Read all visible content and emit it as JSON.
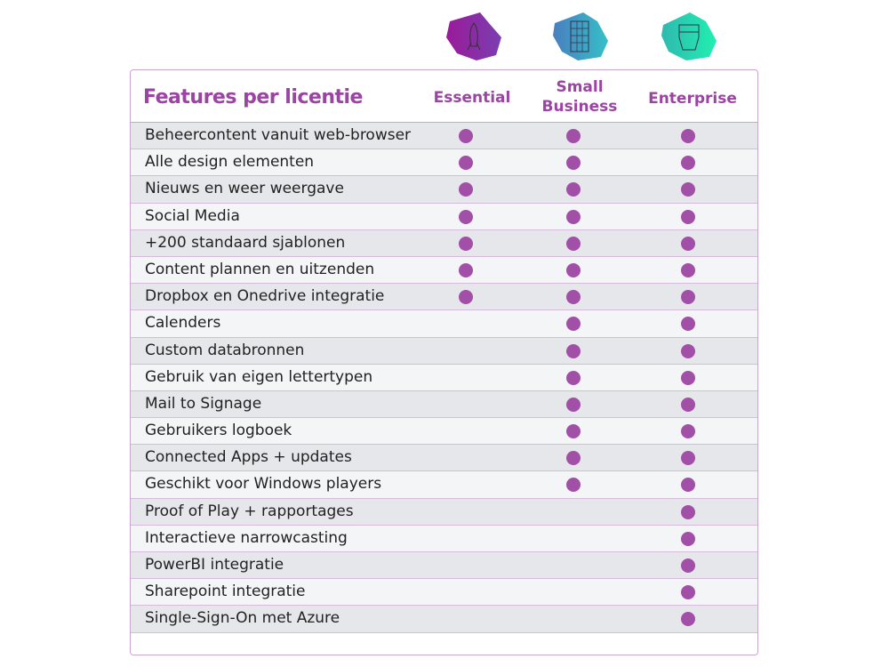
{
  "header": {
    "title": "Features per licentie",
    "columns": [
      "Essential",
      "Small Business",
      "Enterprise"
    ],
    "column_lines": [
      [
        "Essential"
      ],
      [
        "Small",
        "Business"
      ],
      [
        "Enterprise"
      ]
    ]
  },
  "icons": [
    {
      "name": "rocket-icon",
      "color": "#8a2a9a"
    },
    {
      "name": "building-icon",
      "color": "#3f8fc0"
    },
    {
      "name": "ship-icon",
      "color": "#22d8b0"
    }
  ],
  "dot_color": "#a24fa8",
  "rows": [
    {
      "label": "Beheercontent vanuit web-browser",
      "avail": [
        true,
        true,
        true
      ]
    },
    {
      "label": "Alle design elementen",
      "avail": [
        true,
        true,
        true
      ]
    },
    {
      "label": "Nieuws en weer weergave",
      "avail": [
        true,
        true,
        true
      ]
    },
    {
      "label": "Social Media",
      "avail": [
        true,
        true,
        true
      ]
    },
    {
      "label": "+200 standaard sjablonen",
      "avail": [
        true,
        true,
        true
      ]
    },
    {
      "label": "Content plannen en uitzenden",
      "avail": [
        true,
        true,
        true
      ]
    },
    {
      "label": "Dropbox en Onedrive integratie",
      "avail": [
        true,
        true,
        true
      ]
    },
    {
      "label": "Calenders",
      "avail": [
        false,
        true,
        true
      ]
    },
    {
      "label": "Custom databronnen",
      "avail": [
        false,
        true,
        true
      ]
    },
    {
      "label": "Gebruik van eigen lettertypen",
      "avail": [
        false,
        true,
        true
      ]
    },
    {
      "label": "Mail to Signage",
      "avail": [
        false,
        true,
        true
      ]
    },
    {
      "label": "Gebruikers logboek",
      "avail": [
        false,
        true,
        true
      ]
    },
    {
      "label": "Connected Apps + updates",
      "avail": [
        false,
        true,
        true
      ]
    },
    {
      "label": "Geschikt voor Windows players",
      "avail": [
        false,
        true,
        true
      ]
    },
    {
      "label": "Proof of Play + rapportages",
      "avail": [
        false,
        false,
        true
      ]
    },
    {
      "label": "Interactieve narrowcasting",
      "avail": [
        false,
        false,
        true
      ]
    },
    {
      "label": "PowerBI integratie",
      "avail": [
        false,
        false,
        true
      ]
    },
    {
      "label": "Sharepoint integratie",
      "avail": [
        false,
        false,
        true
      ]
    },
    {
      "label": "Single-Sign-On met Azure",
      "avail": [
        false,
        false,
        true
      ]
    }
  ]
}
